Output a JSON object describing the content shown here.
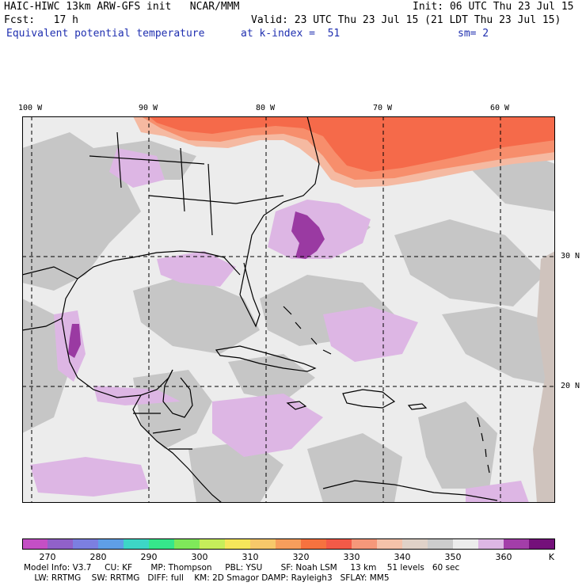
{
  "header": {
    "line1_left": "HAIC-HIWC 13km ARW-GFS init   NCAR/MMM",
    "line1_right": "Init: 06 UTC Thu 23 Jul 15",
    "line2_left": "Fcst:   17 h",
    "line2_right": "Valid: 23 UTC Thu 23 Jul 15 (21 LDT Thu 23 Jul 15)",
    "field": "Equivalent potential temperature",
    "level": "at k-index =  51",
    "smooth": "sm= 2"
  },
  "map": {
    "lon_labels": [
      "100 W",
      "90 W",
      "80 W",
      "70 W",
      "60 W"
    ],
    "lat_labels": [
      "30 N",
      "20 N"
    ],
    "colors": {
      "background": "#ececec",
      "gray": "#c4c4c4",
      "lavender": "#ddb6e4",
      "purple": "#9a3aa2",
      "warm": "#f56a4a",
      "orange": "#f78e6c",
      "peach": "#f5b9a1",
      "tan": "#cfc3bd"
    }
  },
  "colorbar": {
    "tick_labels": [
      "270",
      "280",
      "290",
      "300",
      "310",
      "320",
      "330",
      "340",
      "350",
      "360"
    ],
    "unit": "K",
    "colors": [
      "#c44fc5",
      "#9161c9",
      "#7c7fe0",
      "#5f9fe6",
      "#3dd6c6",
      "#36e68b",
      "#7fe85a",
      "#c6ee5a",
      "#f5e65a",
      "#f7c86a",
      "#f79e5c",
      "#f6723f",
      "#f35a48",
      "#f5987a",
      "#f4c2aa",
      "#e0d2c8",
      "#cccccc",
      "#ececec",
      "#ddb6e4",
      "#a33ea9",
      "#74107a"
    ]
  },
  "footer": {
    "line1": "Model Info: V3.7     CU: KF       MP: Thompson     PBL: YSU       SF: Noah LSM     13 km    51 levels   60 sec",
    "line2": "    LW: RRTMG    SW: RRTMG   DIFF: full    KM: 2D Smagor DAMP: Rayleigh3   SFLAY: MM5"
  }
}
